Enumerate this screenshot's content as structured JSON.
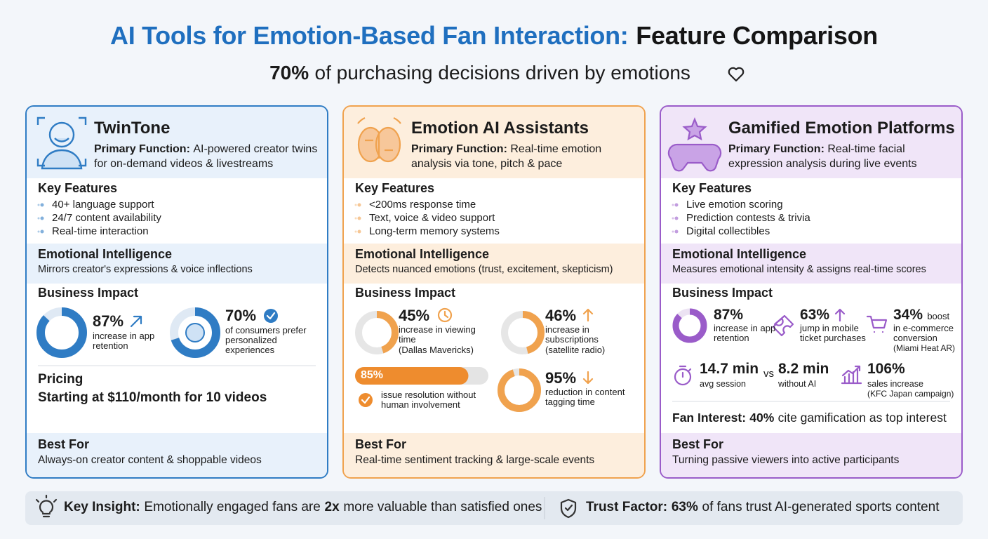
{
  "header": {
    "title": "AI Tools for Emotion-Based Fan Interaction:",
    "title_emphasis": "Feature Comparison",
    "subtitle_stat": "70%",
    "subtitle": "of purchasing decisions driven by emotions"
  },
  "cards": [
    {
      "name": "TwinTone",
      "primary_function_label": "Primary Function:",
      "primary_function": "AI-powered creator twins for on-demand videos & livestreams",
      "key_features_heading": "Key Features",
      "key_features": [
        "40+ language support",
        "24/7 content availability",
        "Real-time interaction"
      ],
      "emotional_intelligence_heading": "Emotional Intelligence",
      "emotional_intelligence": "Mirrors creator's expressions & voice inflections",
      "business_impact_heading": "Business Impact",
      "stats": [
        {
          "value": 87,
          "label": "87%",
          "text": "increase in app retention"
        },
        {
          "value": 70,
          "label": "70%",
          "text": "of consumers prefer personalized experiences"
        }
      ],
      "pricing_heading": "Pricing",
      "pricing": "Starting at $110/month for 10 videos",
      "best_for_heading": "Best For",
      "best_for": "Always-on creator content & shoppable videos"
    },
    {
      "name": "Emotion AI Assistants",
      "primary_function_label": "Primary Function:",
      "primary_function": "Real-time emotion analysis via tone, pitch & pace",
      "key_features_heading": "Key Features",
      "key_features": [
        "<200ms response time",
        "Text, voice & video support",
        "Long-term memory systems"
      ],
      "emotional_intelligence_heading": "Emotional Intelligence",
      "emotional_intelligence": "Detects nuanced emotions (trust, excitement, skepticism)",
      "business_impact_heading": "Business Impact",
      "stats": [
        {
          "value": 45,
          "label": "45%",
          "text": "increase in viewing time",
          "note": "(Dallas Mavericks)"
        },
        {
          "value": 46,
          "label": "46%",
          "text": "increase in subscriptions",
          "note": "(satellite radio)"
        },
        {
          "value": 85,
          "label": "85%",
          "text": "issue resolution without human involvement"
        },
        {
          "value": 95,
          "label": "95%",
          "text": "reduction in content tagging time"
        }
      ],
      "best_for_heading": "Best For",
      "best_for": "Real-time sentiment tracking & large-scale events"
    },
    {
      "name": "Gamified Emotion Platforms",
      "primary_function_label": "Primary Function:",
      "primary_function": "Real-time facial expression analysis during live events",
      "key_features_heading": "Key Features",
      "key_features": [
        "Live emotion scoring",
        "Prediction contests & trivia",
        "Digital collectibles"
      ],
      "emotional_intelligence_heading": "Emotional Intelligence",
      "emotional_intelligence": "Measures emotional intensity & assigns real-time scores",
      "business_impact_heading": "Business Impact",
      "stats": [
        {
          "value": 87,
          "label": "87%",
          "text": "increase in app retention"
        },
        {
          "label": "63%",
          "text": "jump in mobile ticket purchases"
        },
        {
          "label": "34%",
          "suffix": "boost",
          "text": "in e-commerce conversion",
          "note": "(Miami Heat AR)"
        },
        {
          "label": "14.7 min",
          "text": "avg session"
        },
        {
          "label": "8.2 min",
          "text": "without AI"
        },
        {
          "label": "106%",
          "text": "sales increase",
          "note": "(KFC Japan campaign)"
        }
      ],
      "comparison_word": "vs",
      "fan_interest_label": "Fan Interest:",
      "fan_interest_stat": "40%",
      "fan_interest": "cite gamification as top interest",
      "best_for_heading": "Best For",
      "best_for": "Turning passive viewers into active participants"
    }
  ],
  "footer": {
    "insight_label": "Key Insight:",
    "insight_before": "Emotionally engaged fans are",
    "insight_emphasis": "2x",
    "insight_after": "more valuable than satisfied ones",
    "trust_label": "Trust Factor:",
    "trust_stat": "63%",
    "trust_text": "of fans trust AI-generated sports content"
  }
}
